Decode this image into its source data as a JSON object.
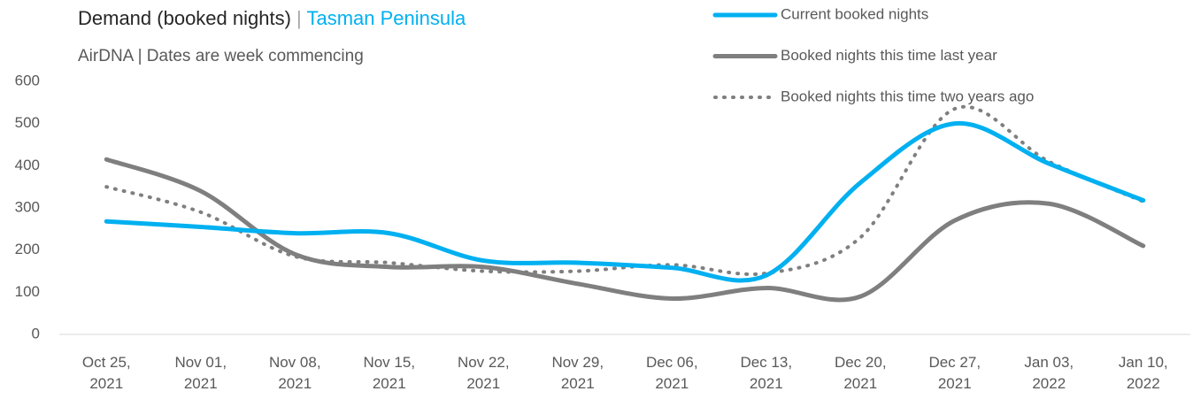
{
  "chart_data": {
    "type": "line",
    "title": "Demand (booked nights)",
    "title_separator": "|",
    "title_highlight": "Tasman Peninsula",
    "title_highlight_color": "#00b0f0",
    "subtitle": "AirDNA | Dates are week commencing",
    "categories": [
      "Oct 25, 2021",
      "Nov 01, 2021",
      "Nov 08, 2021",
      "Nov 15, 2021",
      "Nov 22, 2021",
      "Nov 29, 2021",
      "Dec 06, 2021",
      "Dec 13, 2021",
      "Dec 20, 2021",
      "Dec 27, 2021",
      "Jan 03, 2022",
      "Jan 10, 2022"
    ],
    "series": [
      {
        "name": "Current booked nights",
        "color": "#00b0f0",
        "line_style": "solid",
        "values": [
          268,
          255,
          240,
          240,
          175,
          170,
          158,
          140,
          360,
          500,
          405,
          318
        ]
      },
      {
        "name": "Booked nights this time last year",
        "color": "#7f7f7f",
        "line_style": "solid",
        "values": [
          415,
          340,
          190,
          160,
          160,
          120,
          85,
          110,
          90,
          270,
          310,
          210
        ]
      },
      {
        "name": "Booked nights this time two years ago",
        "color": "#7f7f7f",
        "line_style": "dotted",
        "values": [
          350,
          290,
          185,
          170,
          150,
          150,
          165,
          145,
          230,
          535,
          410,
          315
        ]
      }
    ],
    "ylim": [
      0,
      600
    ],
    "yticks": [
      0,
      100,
      200,
      300,
      400,
      500,
      600
    ],
    "grid": false,
    "legend": "top-right"
  }
}
